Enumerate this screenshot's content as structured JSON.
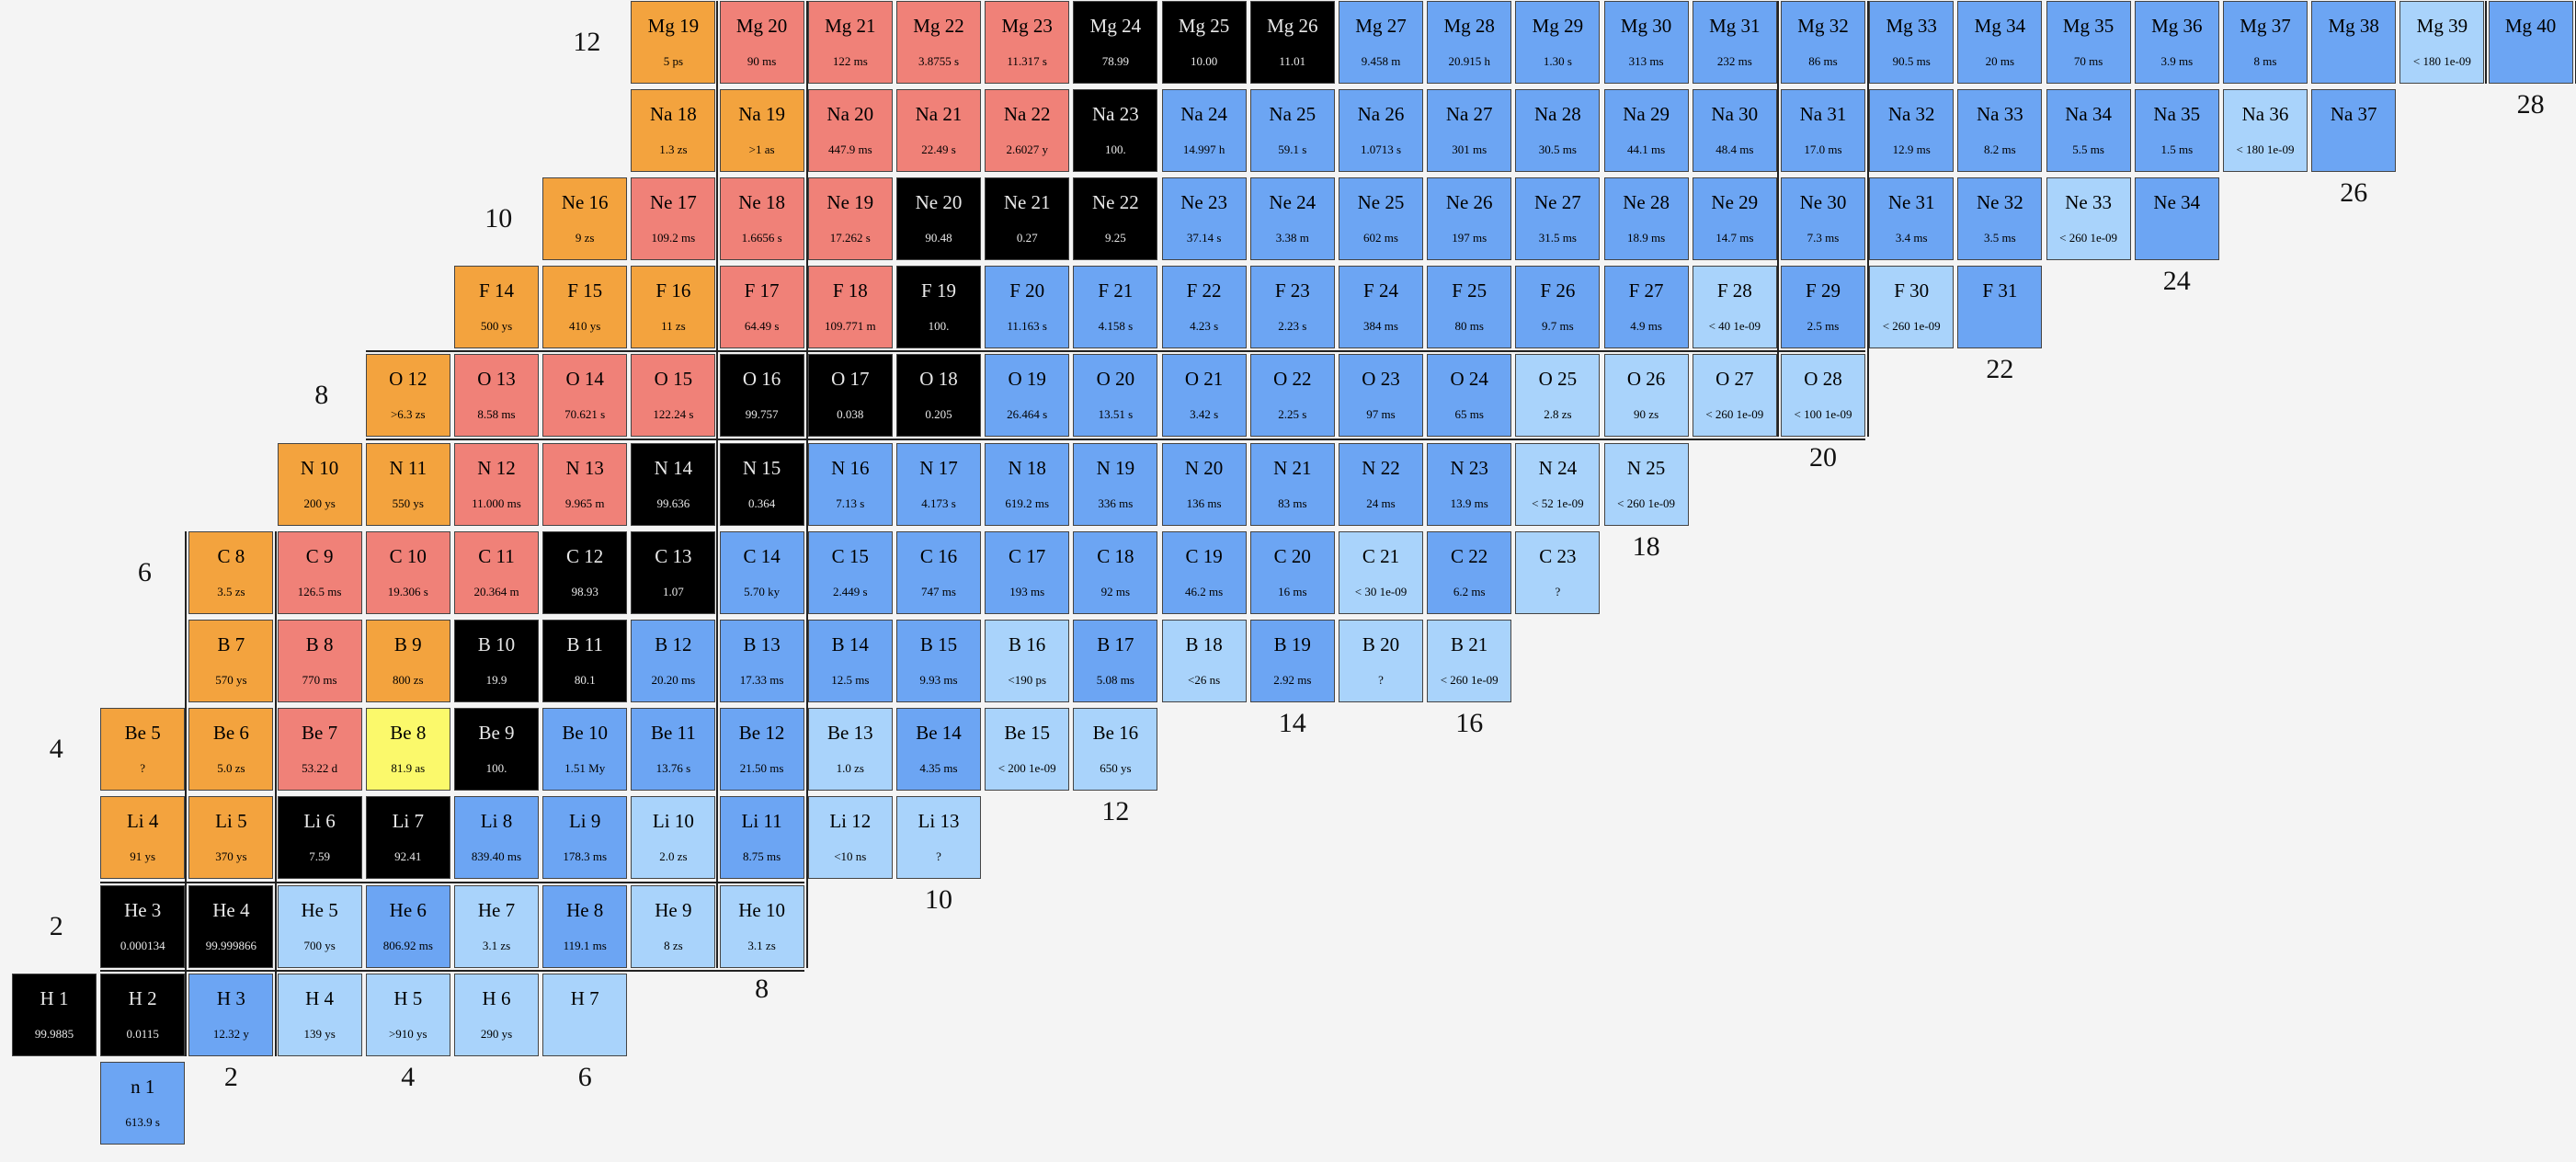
{
  "colors": {
    "stable": "#000000",
    "beta_minus": "#6ca5f3",
    "beta_minus_unknown": "#a9d3fb",
    "beta_plus": "#f08178",
    "proton_emission": "#f3a33e",
    "alpha": "#fbf96b",
    "border": "#444444"
  },
  "n_labels": [
    "2",
    "4",
    "6",
    "8",
    "10",
    "12",
    "14",
    "16",
    "18",
    "20",
    "22",
    "24",
    "26",
    "28"
  ],
  "z_labels": [
    "2",
    "4",
    "6",
    "8",
    "10",
    "12"
  ],
  "nuclides": [
    {
      "z": 0,
      "n": 1,
      "name": "n 1",
      "hl": "613.9 s",
      "mode": "b"
    },
    {
      "z": 1,
      "n": 0,
      "name": "H 1",
      "hl": "99.9885",
      "mode": "s"
    },
    {
      "z": 1,
      "n": 1,
      "name": "H 2",
      "hl": "0.0115",
      "mode": "s"
    },
    {
      "z": 1,
      "n": 2,
      "name": "H 3",
      "hl": "12.32 y",
      "mode": "b"
    },
    {
      "z": 1,
      "n": 3,
      "name": "H 4",
      "hl": "139 ys",
      "mode": "l"
    },
    {
      "z": 1,
      "n": 4,
      "name": "H 5",
      "hl": ">910 ys",
      "mode": "l"
    },
    {
      "z": 1,
      "n": 5,
      "name": "H 6",
      "hl": "290 ys",
      "mode": "l"
    },
    {
      "z": 1,
      "n": 6,
      "name": "H 7",
      "hl": "",
      "mode": "l"
    },
    {
      "z": 2,
      "n": 1,
      "name": "He 3",
      "hl": "0.000134",
      "mode": "s"
    },
    {
      "z": 2,
      "n": 2,
      "name": "He 4",
      "hl": "99.999866",
      "mode": "s"
    },
    {
      "z": 2,
      "n": 3,
      "name": "He 5",
      "hl": "700 ys",
      "mode": "l"
    },
    {
      "z": 2,
      "n": 4,
      "name": "He 6",
      "hl": "806.92 ms",
      "mode": "b"
    },
    {
      "z": 2,
      "n": 5,
      "name": "He 7",
      "hl": "3.1 zs",
      "mode": "l"
    },
    {
      "z": 2,
      "n": 6,
      "name": "He 8",
      "hl": "119.1 ms",
      "mode": "b"
    },
    {
      "z": 2,
      "n": 7,
      "name": "He 9",
      "hl": "8 zs",
      "mode": "l"
    },
    {
      "z": 2,
      "n": 8,
      "name": "He 10",
      "hl": "3.1 zs",
      "mode": "l"
    },
    {
      "z": 3,
      "n": 1,
      "name": "Li 4",
      "hl": "91 ys",
      "mode": "p"
    },
    {
      "z": 3,
      "n": 2,
      "name": "Li 5",
      "hl": "370 ys",
      "mode": "p"
    },
    {
      "z": 3,
      "n": 3,
      "name": "Li 6",
      "hl": "7.59",
      "mode": "s"
    },
    {
      "z": 3,
      "n": 4,
      "name": "Li 7",
      "hl": "92.41",
      "mode": "s"
    },
    {
      "z": 3,
      "n": 5,
      "name": "Li 8",
      "hl": "839.40 ms",
      "mode": "b"
    },
    {
      "z": 3,
      "n": 6,
      "name": "Li 9",
      "hl": "178.3 ms",
      "mode": "b"
    },
    {
      "z": 3,
      "n": 7,
      "name": "Li 10",
      "hl": "2.0 zs",
      "mode": "l"
    },
    {
      "z": 3,
      "n": 8,
      "name": "Li 11",
      "hl": "8.75 ms",
      "mode": "b"
    },
    {
      "z": 3,
      "n": 9,
      "name": "Li 12",
      "hl": "<10 ns",
      "mode": "l"
    },
    {
      "z": 3,
      "n": 10,
      "name": "Li 13",
      "hl": "?",
      "mode": "l"
    },
    {
      "z": 4,
      "n": 1,
      "name": "Be 5",
      "hl": "?",
      "mode": "p"
    },
    {
      "z": 4,
      "n": 2,
      "name": "Be 6",
      "hl": "5.0 zs",
      "mode": "p"
    },
    {
      "z": 4,
      "n": 3,
      "name": "Be 7",
      "hl": "53.22 d",
      "mode": "r"
    },
    {
      "z": 4,
      "n": 4,
      "name": "Be 8",
      "hl": "81.9 as",
      "mode": "a"
    },
    {
      "z": 4,
      "n": 5,
      "name": "Be 9",
      "hl": "100.",
      "mode": "s"
    },
    {
      "z": 4,
      "n": 6,
      "name": "Be 10",
      "hl": "1.51 My",
      "mode": "b"
    },
    {
      "z": 4,
      "n": 7,
      "name": "Be 11",
      "hl": "13.76 s",
      "mode": "b"
    },
    {
      "z": 4,
      "n": 8,
      "name": "Be 12",
      "hl": "21.50 ms",
      "mode": "b"
    },
    {
      "z": 4,
      "n": 9,
      "name": "Be 13",
      "hl": "1.0 zs",
      "mode": "l"
    },
    {
      "z": 4,
      "n": 10,
      "name": "Be 14",
      "hl": "4.35 ms",
      "mode": "b"
    },
    {
      "z": 4,
      "n": 11,
      "name": "Be 15",
      "hl": "< 200 1e-09",
      "mode": "l"
    },
    {
      "z": 4,
      "n": 12,
      "name": "Be 16",
      "hl": "650 ys",
      "mode": "l"
    },
    {
      "z": 5,
      "n": 2,
      "name": "B 7",
      "hl": "570 ys",
      "mode": "p"
    },
    {
      "z": 5,
      "n": 3,
      "name": "B 8",
      "hl": "770 ms",
      "mode": "r"
    },
    {
      "z": 5,
      "n": 4,
      "name": "B 9",
      "hl": "800 zs",
      "mode": "p"
    },
    {
      "z": 5,
      "n": 5,
      "name": "B 10",
      "hl": "19.9",
      "mode": "s"
    },
    {
      "z": 5,
      "n": 6,
      "name": "B 11",
      "hl": "80.1",
      "mode": "s"
    },
    {
      "z": 5,
      "n": 7,
      "name": "B 12",
      "hl": "20.20 ms",
      "mode": "b"
    },
    {
      "z": 5,
      "n": 8,
      "name": "B 13",
      "hl": "17.33 ms",
      "mode": "b"
    },
    {
      "z": 5,
      "n": 9,
      "name": "B 14",
      "hl": "12.5 ms",
      "mode": "b"
    },
    {
      "z": 5,
      "n": 10,
      "name": "B 15",
      "hl": "9.93 ms",
      "mode": "b"
    },
    {
      "z": 5,
      "n": 11,
      "name": "B 16",
      "hl": "<190 ps",
      "mode": "l"
    },
    {
      "z": 5,
      "n": 12,
      "name": "B 17",
      "hl": "5.08 ms",
      "mode": "b"
    },
    {
      "z": 5,
      "n": 13,
      "name": "B 18",
      "hl": "<26 ns",
      "mode": "l"
    },
    {
      "z": 5,
      "n": 14,
      "name": "B 19",
      "hl": "2.92 ms",
      "mode": "b"
    },
    {
      "z": 5,
      "n": 15,
      "name": "B 20",
      "hl": "?",
      "mode": "l"
    },
    {
      "z": 5,
      "n": 16,
      "name": "B 21",
      "hl": "< 260 1e-09",
      "mode": "l"
    },
    {
      "z": 6,
      "n": 2,
      "name": "C 8",
      "hl": "3.5 zs",
      "mode": "p"
    },
    {
      "z": 6,
      "n": 3,
      "name": "C 9",
      "hl": "126.5 ms",
      "mode": "r"
    },
    {
      "z": 6,
      "n": 4,
      "name": "C 10",
      "hl": "19.306 s",
      "mode": "r"
    },
    {
      "z": 6,
      "n": 5,
      "name": "C 11",
      "hl": "20.364 m",
      "mode": "r"
    },
    {
      "z": 6,
      "n": 6,
      "name": "C 12",
      "hl": "98.93",
      "mode": "s"
    },
    {
      "z": 6,
      "n": 7,
      "name": "C 13",
      "hl": "1.07",
      "mode": "s"
    },
    {
      "z": 6,
      "n": 8,
      "name": "C 14",
      "hl": "5.70 ky",
      "mode": "b"
    },
    {
      "z": 6,
      "n": 9,
      "name": "C 15",
      "hl": "2.449 s",
      "mode": "b"
    },
    {
      "z": 6,
      "n": 10,
      "name": "C 16",
      "hl": "747 ms",
      "mode": "b"
    },
    {
      "z": 6,
      "n": 11,
      "name": "C 17",
      "hl": "193 ms",
      "mode": "b"
    },
    {
      "z": 6,
      "n": 12,
      "name": "C 18",
      "hl": "92 ms",
      "mode": "b"
    },
    {
      "z": 6,
      "n": 13,
      "name": "C 19",
      "hl": "46.2 ms",
      "mode": "b"
    },
    {
      "z": 6,
      "n": 14,
      "name": "C 20",
      "hl": "16 ms",
      "mode": "b"
    },
    {
      "z": 6,
      "n": 15,
      "name": "C 21",
      "hl": "< 30 1e-09",
      "mode": "l"
    },
    {
      "z": 6,
      "n": 16,
      "name": "C 22",
      "hl": "6.2 ms",
      "mode": "b"
    },
    {
      "z": 6,
      "n": 17,
      "name": "C 23",
      "hl": "?",
      "mode": "l"
    },
    {
      "z": 7,
      "n": 3,
      "name": "N 10",
      "hl": "200 ys",
      "mode": "p"
    },
    {
      "z": 7,
      "n": 4,
      "name": "N 11",
      "hl": "550 ys",
      "mode": "p"
    },
    {
      "z": 7,
      "n": 5,
      "name": "N 12",
      "hl": "11.000 ms",
      "mode": "r"
    },
    {
      "z": 7,
      "n": 6,
      "name": "N 13",
      "hl": "9.965 m",
      "mode": "r"
    },
    {
      "z": 7,
      "n": 7,
      "name": "N 14",
      "hl": "99.636",
      "mode": "s"
    },
    {
      "z": 7,
      "n": 8,
      "name": "N 15",
      "hl": "0.364",
      "mode": "s"
    },
    {
      "z": 7,
      "n": 9,
      "name": "N 16",
      "hl": "7.13 s",
      "mode": "b"
    },
    {
      "z": 7,
      "n": 10,
      "name": "N 17",
      "hl": "4.173 s",
      "mode": "b"
    },
    {
      "z": 7,
      "n": 11,
      "name": "N 18",
      "hl": "619.2 ms",
      "mode": "b"
    },
    {
      "z": 7,
      "n": 12,
      "name": "N 19",
      "hl": "336 ms",
      "mode": "b"
    },
    {
      "z": 7,
      "n": 13,
      "name": "N 20",
      "hl": "136 ms",
      "mode": "b"
    },
    {
      "z": 7,
      "n": 14,
      "name": "N 21",
      "hl": "83 ms",
      "mode": "b"
    },
    {
      "z": 7,
      "n": 15,
      "name": "N 22",
      "hl": "24 ms",
      "mode": "b"
    },
    {
      "z": 7,
      "n": 16,
      "name": "N 23",
      "hl": "13.9 ms",
      "mode": "b"
    },
    {
      "z": 7,
      "n": 17,
      "name": "N 24",
      "hl": "< 52 1e-09",
      "mode": "l"
    },
    {
      "z": 7,
      "n": 18,
      "name": "N 25",
      "hl": "< 260 1e-09",
      "mode": "l"
    },
    {
      "z": 8,
      "n": 4,
      "name": "O 12",
      "hl": ">6.3 zs",
      "mode": "p"
    },
    {
      "z": 8,
      "n": 5,
      "name": "O 13",
      "hl": "8.58 ms",
      "mode": "r"
    },
    {
      "z": 8,
      "n": 6,
      "name": "O 14",
      "hl": "70.621 s",
      "mode": "r"
    },
    {
      "z": 8,
      "n": 7,
      "name": "O 15",
      "hl": "122.24 s",
      "mode": "r"
    },
    {
      "z": 8,
      "n": 8,
      "name": "O 16",
      "hl": "99.757",
      "mode": "s"
    },
    {
      "z": 8,
      "n": 9,
      "name": "O 17",
      "hl": "0.038",
      "mode": "s"
    },
    {
      "z": 8,
      "n": 10,
      "name": "O 18",
      "hl": "0.205",
      "mode": "s"
    },
    {
      "z": 8,
      "n": 11,
      "name": "O 19",
      "hl": "26.464 s",
      "mode": "b"
    },
    {
      "z": 8,
      "n": 12,
      "name": "O 20",
      "hl": "13.51 s",
      "mode": "b"
    },
    {
      "z": 8,
      "n": 13,
      "name": "O 21",
      "hl": "3.42 s",
      "mode": "b"
    },
    {
      "z": 8,
      "n": 14,
      "name": "O 22",
      "hl": "2.25 s",
      "mode": "b"
    },
    {
      "z": 8,
      "n": 15,
      "name": "O 23",
      "hl": "97 ms",
      "mode": "b"
    },
    {
      "z": 8,
      "n": 16,
      "name": "O 24",
      "hl": "65 ms",
      "mode": "b"
    },
    {
      "z": 8,
      "n": 17,
      "name": "O 25",
      "hl": "2.8 zs",
      "mode": "l"
    },
    {
      "z": 8,
      "n": 18,
      "name": "O 26",
      "hl": "90 zs",
      "mode": "l"
    },
    {
      "z": 8,
      "n": 19,
      "name": "O 27",
      "hl": "< 260 1e-09",
      "mode": "l"
    },
    {
      "z": 8,
      "n": 20,
      "name": "O 28",
      "hl": "< 100 1e-09",
      "mode": "l"
    },
    {
      "z": 9,
      "n": 5,
      "name": "F 14",
      "hl": "500 ys",
      "mode": "p"
    },
    {
      "z": 9,
      "n": 6,
      "name": "F 15",
      "hl": "410 ys",
      "mode": "p"
    },
    {
      "z": 9,
      "n": 7,
      "name": "F 16",
      "hl": "11 zs",
      "mode": "p"
    },
    {
      "z": 9,
      "n": 8,
      "name": "F 17",
      "hl": "64.49 s",
      "mode": "r"
    },
    {
      "z": 9,
      "n": 9,
      "name": "F 18",
      "hl": "109.771 m",
      "mode": "r"
    },
    {
      "z": 9,
      "n": 10,
      "name": "F 19",
      "hl": "100.",
      "mode": "s"
    },
    {
      "z": 9,
      "n": 11,
      "name": "F 20",
      "hl": "11.163 s",
      "mode": "b"
    },
    {
      "z": 9,
      "n": 12,
      "name": "F 21",
      "hl": "4.158 s",
      "mode": "b"
    },
    {
      "z": 9,
      "n": 13,
      "name": "F 22",
      "hl": "4.23 s",
      "mode": "b"
    },
    {
      "z": 9,
      "n": 14,
      "name": "F 23",
      "hl": "2.23 s",
      "mode": "b"
    },
    {
      "z": 9,
      "n": 15,
      "name": "F 24",
      "hl": "384 ms",
      "mode": "b"
    },
    {
      "z": 9,
      "n": 16,
      "name": "F 25",
      "hl": "80 ms",
      "mode": "b"
    },
    {
      "z": 9,
      "n": 17,
      "name": "F 26",
      "hl": "9.7 ms",
      "mode": "b"
    },
    {
      "z": 9,
      "n": 18,
      "name": "F 27",
      "hl": "4.9 ms",
      "mode": "b"
    },
    {
      "z": 9,
      "n": 19,
      "name": "F 28",
      "hl": "< 40 1e-09",
      "mode": "l"
    },
    {
      "z": 9,
      "n": 20,
      "name": "F 29",
      "hl": "2.5 ms",
      "mode": "b"
    },
    {
      "z": 9,
      "n": 21,
      "name": "F 30",
      "hl": "< 260 1e-09",
      "mode": "l"
    },
    {
      "z": 9,
      "n": 22,
      "name": "F 31",
      "hl": "",
      "mode": "b"
    },
    {
      "z": 10,
      "n": 6,
      "name": "Ne 16",
      "hl": "9 zs",
      "mode": "p"
    },
    {
      "z": 10,
      "n": 7,
      "name": "Ne 17",
      "hl": "109.2 ms",
      "mode": "r"
    },
    {
      "z": 10,
      "n": 8,
      "name": "Ne 18",
      "hl": "1.6656 s",
      "mode": "r"
    },
    {
      "z": 10,
      "n": 9,
      "name": "Ne 19",
      "hl": "17.262 s",
      "mode": "r"
    },
    {
      "z": 10,
      "n": 10,
      "name": "Ne 20",
      "hl": "90.48",
      "mode": "s"
    },
    {
      "z": 10,
      "n": 11,
      "name": "Ne 21",
      "hl": "0.27",
      "mode": "s"
    },
    {
      "z": 10,
      "n": 12,
      "name": "Ne 22",
      "hl": "9.25",
      "mode": "s"
    },
    {
      "z": 10,
      "n": 13,
      "name": "Ne 23",
      "hl": "37.14 s",
      "mode": "b"
    },
    {
      "z": 10,
      "n": 14,
      "name": "Ne 24",
      "hl": "3.38 m",
      "mode": "b"
    },
    {
      "z": 10,
      "n": 15,
      "name": "Ne 25",
      "hl": "602 ms",
      "mode": "b"
    },
    {
      "z": 10,
      "n": 16,
      "name": "Ne 26",
      "hl": "197 ms",
      "mode": "b"
    },
    {
      "z": 10,
      "n": 17,
      "name": "Ne 27",
      "hl": "31.5 ms",
      "mode": "b"
    },
    {
      "z": 10,
      "n": 18,
      "name": "Ne 28",
      "hl": "18.9 ms",
      "mode": "b"
    },
    {
      "z": 10,
      "n": 19,
      "name": "Ne 29",
      "hl": "14.7 ms",
      "mode": "b"
    },
    {
      "z": 10,
      "n": 20,
      "name": "Ne 30",
      "hl": "7.3 ms",
      "mode": "b"
    },
    {
      "z": 10,
      "n": 21,
      "name": "Ne 31",
      "hl": "3.4 ms",
      "mode": "b"
    },
    {
      "z": 10,
      "n": 22,
      "name": "Ne 32",
      "hl": "3.5 ms",
      "mode": "b"
    },
    {
      "z": 10,
      "n": 23,
      "name": "Ne 33",
      "hl": "< 260 1e-09",
      "mode": "l"
    },
    {
      "z": 10,
      "n": 24,
      "name": "Ne 34",
      "hl": "",
      "mode": "b"
    },
    {
      "z": 11,
      "n": 7,
      "name": "Na 18",
      "hl": "1.3 zs",
      "mode": "p"
    },
    {
      "z": 11,
      "n": 8,
      "name": "Na 19",
      "hl": ">1 as",
      "mode": "p"
    },
    {
      "z": 11,
      "n": 9,
      "name": "Na 20",
      "hl": "447.9 ms",
      "mode": "r"
    },
    {
      "z": 11,
      "n": 10,
      "name": "Na 21",
      "hl": "22.49 s",
      "mode": "r"
    },
    {
      "z": 11,
      "n": 11,
      "name": "Na 22",
      "hl": "2.6027 y",
      "mode": "r"
    },
    {
      "z": 11,
      "n": 12,
      "name": "Na 23",
      "hl": "100.",
      "mode": "s"
    },
    {
      "z": 11,
      "n": 13,
      "name": "Na 24",
      "hl": "14.997 h",
      "mode": "b"
    },
    {
      "z": 11,
      "n": 14,
      "name": "Na 25",
      "hl": "59.1 s",
      "mode": "b"
    },
    {
      "z": 11,
      "n": 15,
      "name": "Na 26",
      "hl": "1.0713 s",
      "mode": "b"
    },
    {
      "z": 11,
      "n": 16,
      "name": "Na 27",
      "hl": "301 ms",
      "mode": "b"
    },
    {
      "z": 11,
      "n": 17,
      "name": "Na 28",
      "hl": "30.5 ms",
      "mode": "b"
    },
    {
      "z": 11,
      "n": 18,
      "name": "Na 29",
      "hl": "44.1 ms",
      "mode": "b"
    },
    {
      "z": 11,
      "n": 19,
      "name": "Na 30",
      "hl": "48.4 ms",
      "mode": "b"
    },
    {
      "z": 11,
      "n": 20,
      "name": "Na 31",
      "hl": "17.0 ms",
      "mode": "b"
    },
    {
      "z": 11,
      "n": 21,
      "name": "Na 32",
      "hl": "12.9 ms",
      "mode": "b"
    },
    {
      "z": 11,
      "n": 22,
      "name": "Na 33",
      "hl": "8.2 ms",
      "mode": "b"
    },
    {
      "z": 11,
      "n": 23,
      "name": "Na 34",
      "hl": "5.5 ms",
      "mode": "b"
    },
    {
      "z": 11,
      "n": 24,
      "name": "Na 35",
      "hl": "1.5 ms",
      "mode": "b"
    },
    {
      "z": 11,
      "n": 25,
      "name": "Na 36",
      "hl": "< 180 1e-09",
      "mode": "l"
    },
    {
      "z": 11,
      "n": 26,
      "name": "Na 37",
      "hl": "",
      "mode": "b"
    },
    {
      "z": 12,
      "n": 7,
      "name": "Mg 19",
      "hl": "5 ps",
      "mode": "p"
    },
    {
      "z": 12,
      "n": 8,
      "name": "Mg 20",
      "hl": "90 ms",
      "mode": "r"
    },
    {
      "z": 12,
      "n": 9,
      "name": "Mg 21",
      "hl": "122 ms",
      "mode": "r"
    },
    {
      "z": 12,
      "n": 10,
      "name": "Mg 22",
      "hl": "3.8755 s",
      "mode": "r"
    },
    {
      "z": 12,
      "n": 11,
      "name": "Mg 23",
      "hl": "11.317 s",
      "mode": "r"
    },
    {
      "z": 12,
      "n": 12,
      "name": "Mg 24",
      "hl": "78.99",
      "mode": "s"
    },
    {
      "z": 12,
      "n": 13,
      "name": "Mg 25",
      "hl": "10.00",
      "mode": "s"
    },
    {
      "z": 12,
      "n": 14,
      "name": "Mg 26",
      "hl": "11.01",
      "mode": "s"
    },
    {
      "z": 12,
      "n": 15,
      "name": "Mg 27",
      "hl": "9.458 m",
      "mode": "b"
    },
    {
      "z": 12,
      "n": 16,
      "name": "Mg 28",
      "hl": "20.915 h",
      "mode": "b"
    },
    {
      "z": 12,
      "n": 17,
      "name": "Mg 29",
      "hl": "1.30 s",
      "mode": "b"
    },
    {
      "z": 12,
      "n": 18,
      "name": "Mg 30",
      "hl": "313 ms",
      "mode": "b"
    },
    {
      "z": 12,
      "n": 19,
      "name": "Mg 31",
      "hl": "232 ms",
      "mode": "b"
    },
    {
      "z": 12,
      "n": 20,
      "name": "Mg 32",
      "hl": "86 ms",
      "mode": "b"
    },
    {
      "z": 12,
      "n": 21,
      "name": "Mg 33",
      "hl": "90.5 ms",
      "mode": "b"
    },
    {
      "z": 12,
      "n": 22,
      "name": "Mg 34",
      "hl": "20 ms",
      "mode": "b"
    },
    {
      "z": 12,
      "n": 23,
      "name": "Mg 35",
      "hl": "70 ms",
      "mode": "b"
    },
    {
      "z": 12,
      "n": 24,
      "name": "Mg 36",
      "hl": "3.9 ms",
      "mode": "b"
    },
    {
      "z": 12,
      "n": 25,
      "name": "Mg 37",
      "hl": "8 ms",
      "mode": "b"
    },
    {
      "z": 12,
      "n": 26,
      "name": "Mg 38",
      "hl": "",
      "mode": "b"
    },
    {
      "z": 12,
      "n": 27,
      "name": "Mg 39",
      "hl": "< 180 1e-09",
      "mode": "l"
    },
    {
      "z": 12,
      "n": 28,
      "name": "Mg 40",
      "hl": "",
      "mode": "b"
    }
  ]
}
